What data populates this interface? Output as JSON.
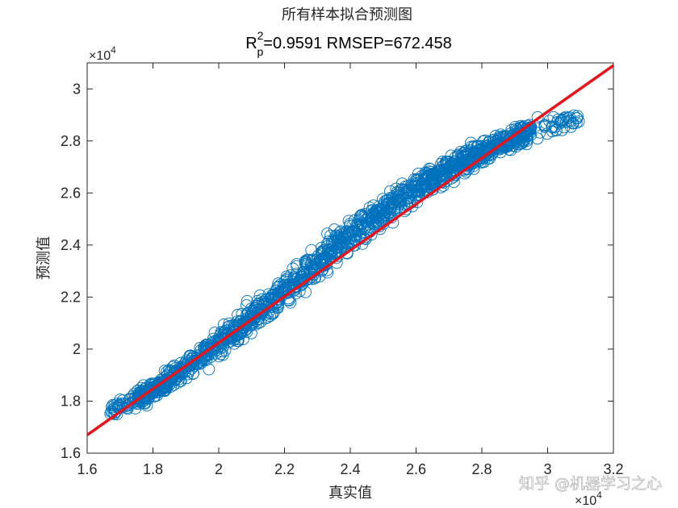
{
  "chart_data": {
    "type": "scatter",
    "title": "所有样本拟合预测图",
    "subtitle": {
      "r_base": "R",
      "r_sup": "2",
      "r_sub": "p",
      "text": "=0.9591  RMSEP=672.458"
    },
    "xlabel": "真实值",
    "ylabel": "预测值",
    "x_multiplier": {
      "base": "10",
      "exp": "4",
      "sign": "×"
    },
    "y_multiplier": {
      "base": "10",
      "exp": "4",
      "sign": "×"
    },
    "xlim": [
      1.6,
      3.2
    ],
    "ylim": [
      1.6,
      3.1
    ],
    "x_ticks": [
      "1.6",
      "1.8",
      "2",
      "2.2",
      "2.4",
      "2.6",
      "2.8",
      "3",
      "3.2"
    ],
    "y_ticks": [
      "1.6",
      "1.8",
      "2",
      "2.2",
      "2.4",
      "2.6",
      "2.8",
      "3"
    ],
    "grid": false,
    "marker": "open circle",
    "point_color": "#0072BD",
    "fit_line_color": "#E8141B",
    "series": [
      {
        "values": "approx. 3000 samples, scattered about the fit line",
        "x_range": [
          1.67,
          3.1
        ],
        "y_range": [
          1.75,
          2.9
        ],
        "trend_knots_x": [
          1.67,
          1.8,
          2.0,
          2.2,
          2.4,
          2.6,
          2.8,
          2.95,
          3.1
        ],
        "trend_knots_y": [
          1.76,
          1.84,
          2.02,
          2.22,
          2.44,
          2.62,
          2.76,
          2.84,
          2.88
        ]
      },
      {
        "values": "fit line",
        "x": [
          1.6,
          3.2
        ],
        "y": [
          1.67,
          3.09
        ]
      }
    ]
  },
  "watermark": "知乎 @机器学习之心"
}
